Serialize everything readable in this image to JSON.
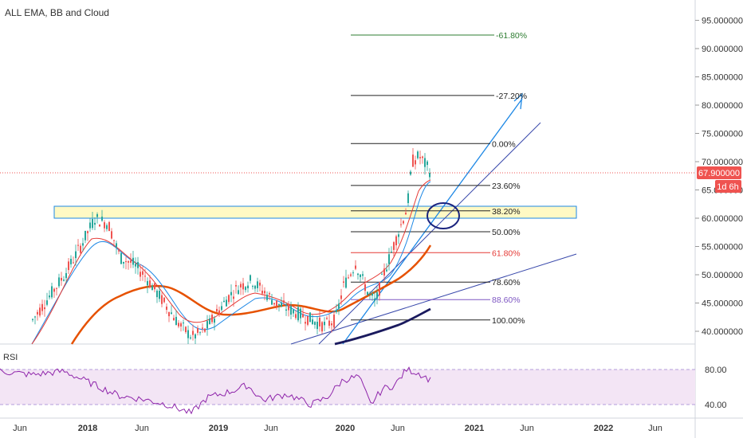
{
  "study_title": "ALL EMA, BB and Cloud",
  "price_axis": {
    "ticks": [
      "95.000000",
      "90.000000",
      "85.000000",
      "80.000000",
      "75.000000",
      "70.000000",
      "65.000000",
      "60.000000",
      "55.000000",
      "50.000000",
      "45.000000",
      "40.000000"
    ],
    "tick_values": [
      95,
      90,
      85,
      80,
      75,
      70,
      65,
      60,
      55,
      50,
      45,
      40
    ],
    "last_price_label": "67.900000",
    "last_price": 67.9,
    "countdown_label": "1d 6h"
  },
  "fib_levels": [
    {
      "label": "-61.80%",
      "price": 92.4,
      "color": "#2e7d32"
    },
    {
      "label": "-27.20%",
      "price": 81.7,
      "color": "#222222"
    },
    {
      "label": "0.00%",
      "price": 73.2,
      "color": "#222222"
    },
    {
      "label": "23.60%",
      "price": 65.8,
      "color": "#222222"
    },
    {
      "label": "38.20%",
      "price": 61.3,
      "color": "#222222"
    },
    {
      "label": "50.00%",
      "price": 57.6,
      "color": "#222222"
    },
    {
      "label": "61.80%",
      "price": 53.9,
      "color": "#e53935"
    },
    {
      "label": "78.60%",
      "price": 48.7,
      "color": "#222222"
    },
    {
      "label": "88.60%",
      "price": 45.6,
      "color": "#7e57c2"
    },
    {
      "label": "100.00%",
      "price": 42.0,
      "color": "#222222"
    }
  ],
  "rsi": {
    "label": "RSI",
    "ticks": [
      "80.00",
      "40.00"
    ],
    "tick_values": [
      80,
      40
    ]
  },
  "time_axis": {
    "labels": [
      "Jun",
      "2018",
      "Jun",
      "2019",
      "Jun",
      "2020",
      "Jun",
      "2021",
      "Jun",
      "2022",
      "Jun"
    ]
  },
  "colors": {
    "last_price_badge": "#ef5350",
    "countdown_badge": "#ef5350",
    "candle_up": "#26a69a",
    "candle_down": "#ef5350",
    "ema_red": "#e65100",
    "ema_navy": "#1a1a5e",
    "bb_blue": "#1e88e5",
    "trendline": "#3949ab",
    "rsi_line": "#8e24aa",
    "rsi_fill": "#f3e5f5",
    "zone_fill": "#fff9c4",
    "zone_stroke": "#1e88e5",
    "ellipse": "#1a237e"
  }
}
